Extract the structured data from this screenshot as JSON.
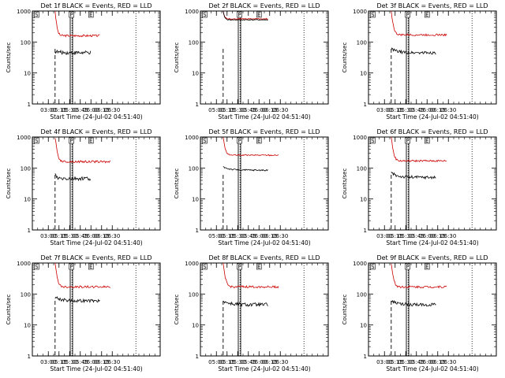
{
  "figure": {
    "xlabel": "Start Time (24-Jul-02 04:51:40)",
    "ylabel": "Counts/sec"
  },
  "colors": {
    "events": "#000000",
    "lld": "#cc0000",
    "axes": "#000000"
  },
  "chart_data": [
    {
      "type": "line",
      "title": "Det 1f BLACK = Events, RED = LLD",
      "ylabel": "Counts/sec",
      "xlabel": "Start Time (24-Jul-02 04:51:40)",
      "yscale": "log",
      "ylim": [
        1,
        1000
      ],
      "xlim": [
        0,
        21600
      ],
      "x_ticks": [
        2700,
        4500,
        6300,
        8100,
        9900,
        11700,
        13500
      ],
      "x_tick_labels": [
        "03:00",
        "05:15",
        "05:30",
        "05:45",
        "06:00",
        "06:15",
        "06:30"
      ],
      "y_ticks": [
        1,
        10,
        100,
        1000
      ],
      "y_tick_labels": [
        "1",
        "10",
        "100",
        "1000"
      ],
      "markers": [
        {
          "label": "S",
          "x": 720
        },
        {
          "label": "P",
          "x": 6600
        },
        {
          "label": "E",
          "x": 9900
        }
      ],
      "series": [
        {
          "name": "Events",
          "color": "#000000",
          "start": 3840,
          "end": 9900,
          "level": 45,
          "peak": 50,
          "noise": 0.12
        },
        {
          "name": "LLD",
          "color": "#cc0000",
          "start": 3840,
          "end": 11400,
          "level": 160,
          "peak": 1000,
          "noise": 0.07
        }
      ]
    },
    {
      "type": "line",
      "title": "Det 2f BLACK = Events, RED = LLD",
      "ylabel": "Counts/sec",
      "xlabel": "Start Time (24-Jul-02 04:51:40)",
      "yscale": "log",
      "ylim": [
        1,
        1000
      ],
      "xlim": [
        0,
        21600
      ],
      "x_ticks": [
        2700,
        4500,
        6300,
        8100,
        9900,
        11700,
        13500
      ],
      "x_tick_labels": [
        "05:00",
        "05:15",
        "05:30",
        "05:45",
        "06:00",
        "06:15",
        "06:30"
      ],
      "y_ticks": [
        1,
        10,
        100,
        1000
      ],
      "y_tick_labels": [
        "1",
        "10",
        "100",
        "1000"
      ],
      "markers": [
        {
          "label": "S",
          "x": 720
        },
        {
          "label": "P",
          "x": 6600
        },
        {
          "label": "E",
          "x": 9900
        }
      ],
      "series": [
        {
          "name": "Events",
          "color": "#000000",
          "start": 3840,
          "end": 11400,
          "level": 520,
          "peak": 1000,
          "noise": 0.03
        },
        {
          "name": "LLD",
          "color": "#cc0000",
          "start": 3840,
          "end": 11400,
          "level": 560,
          "peak": 1000,
          "noise": 0.03
        }
      ]
    },
    {
      "type": "line",
      "title": "Det 3f BLACK = Events, RED = LLD",
      "ylabel": "Counts/sec",
      "xlabel": "Start Time (24-Jul-02 04:51:40)",
      "yscale": "log",
      "ylim": [
        1,
        1000
      ],
      "xlim": [
        0,
        21600
      ],
      "x_ticks": [
        2700,
        4500,
        6300,
        8100,
        9900,
        11700,
        13500
      ],
      "x_tick_labels": [
        "03:00",
        "05:15",
        "05:30",
        "05:45",
        "06:00",
        "06:15",
        "06:30"
      ],
      "y_ticks": [
        1,
        10,
        100,
        1000
      ],
      "y_tick_labels": [
        "1",
        "10",
        "100",
        "1000"
      ],
      "markers": [
        {
          "label": "S",
          "x": 720
        },
        {
          "label": "P",
          "x": 6600
        },
        {
          "label": "E",
          "x": 9900
        }
      ],
      "series": [
        {
          "name": "Events",
          "color": "#000000",
          "start": 3840,
          "end": 11400,
          "level": 45,
          "peak": 60,
          "noise": 0.1
        },
        {
          "name": "LLD",
          "color": "#cc0000",
          "start": 3840,
          "end": 13200,
          "level": 170,
          "peak": 1000,
          "noise": 0.06
        }
      ]
    },
    {
      "type": "line",
      "title": "Det 4f BLACK = Events, RED = LLD",
      "ylabel": "Counts/sec",
      "xlabel": "Start Time (24-Jul-02 04:51:40)",
      "yscale": "log",
      "ylim": [
        1,
        1000
      ],
      "xlim": [
        0,
        21600
      ],
      "x_ticks": [
        2700,
        4500,
        6300,
        8100,
        9900,
        11700,
        13500
      ],
      "x_tick_labels": [
        "03:00",
        "05:15",
        "05:30",
        "05:45",
        "06:00",
        "06:15",
        "06:30"
      ],
      "y_ticks": [
        1,
        10,
        100,
        1000
      ],
      "y_tick_labels": [
        "1",
        "10",
        "100",
        "1000"
      ],
      "markers": [
        {
          "label": "S",
          "x": 720
        },
        {
          "label": "P",
          "x": 6600
        },
        {
          "label": "E",
          "x": 9900
        }
      ],
      "series": [
        {
          "name": "Events",
          "color": "#000000",
          "start": 3840,
          "end": 9900,
          "level": 45,
          "peak": 70,
          "noise": 0.13
        },
        {
          "name": "LLD",
          "color": "#cc0000",
          "start": 3840,
          "end": 13200,
          "level": 160,
          "peak": 1000,
          "noise": 0.07
        }
      ]
    },
    {
      "type": "line",
      "title": "Det 5f BLACK = Events, RED = LLD",
      "ylabel": "Counts/sec",
      "xlabel": "Start Time (24-Jul-02 04:51:40)",
      "yscale": "log",
      "ylim": [
        1,
        1000
      ],
      "xlim": [
        0,
        21600
      ],
      "x_ticks": [
        2700,
        4500,
        6300,
        8100,
        9900,
        11700,
        13500
      ],
      "x_tick_labels": [
        "05:00",
        "05:15",
        "05:30",
        "05:45",
        "06:00",
        "06:15",
        "06:30"
      ],
      "y_ticks": [
        1,
        10,
        100,
        1000
      ],
      "y_tick_labels": [
        "1",
        "10",
        "100",
        "1000"
      ],
      "markers": [
        {
          "label": "S",
          "x": 720
        },
        {
          "label": "P",
          "x": 6600
        },
        {
          "label": "E",
          "x": 9900
        }
      ],
      "series": [
        {
          "name": "Events",
          "color": "#000000",
          "start": 3840,
          "end": 11400,
          "level": 85,
          "peak": 110,
          "noise": 0.05
        },
        {
          "name": "LLD",
          "color": "#cc0000",
          "start": 3840,
          "end": 13200,
          "level": 260,
          "peak": 1000,
          "noise": 0.04
        }
      ]
    },
    {
      "type": "line",
      "title": "Det 6f BLACK = Events, RED = LLD",
      "ylabel": "Counts/sec",
      "xlabel": "Start Time (24-Jul-02 04:51:40)",
      "yscale": "log",
      "ylim": [
        1,
        1000
      ],
      "xlim": [
        0,
        21600
      ],
      "x_ticks": [
        2700,
        4500,
        6300,
        8100,
        9900,
        11700,
        13500
      ],
      "x_tick_labels": [
        "03:00",
        "05:15",
        "05:30",
        "05:45",
        "06:00",
        "06:15",
        "06:30"
      ],
      "y_ticks": [
        1,
        10,
        100,
        1000
      ],
      "y_tick_labels": [
        "1",
        "10",
        "100",
        "1000"
      ],
      "markers": [
        {
          "label": "S",
          "x": 720
        },
        {
          "label": "P",
          "x": 6600
        },
        {
          "label": "E",
          "x": 9900
        }
      ],
      "series": [
        {
          "name": "Events",
          "color": "#000000",
          "start": 3840,
          "end": 11400,
          "level": 50,
          "peak": 70,
          "noise": 0.1
        },
        {
          "name": "LLD",
          "color": "#cc0000",
          "start": 3840,
          "end": 13200,
          "level": 170,
          "peak": 1000,
          "noise": 0.06
        }
      ]
    },
    {
      "type": "line",
      "title": "Det 7f BLACK = Events, RED = LLD",
      "ylabel": "Counts/sec",
      "xlabel": "Start Time (24-Jul-02 04:51:40)",
      "yscale": "log",
      "ylim": [
        1,
        1000
      ],
      "xlim": [
        0,
        21600
      ],
      "x_ticks": [
        2700,
        4500,
        6300,
        8100,
        9900,
        11700,
        13500
      ],
      "x_tick_labels": [
        "03:00",
        "05:15",
        "05:30",
        "05:45",
        "06:00",
        "06:15",
        "06:30"
      ],
      "y_ticks": [
        1,
        10,
        100,
        1000
      ],
      "y_tick_labels": [
        "1",
        "10",
        "100",
        "1000"
      ],
      "markers": [
        {
          "label": "S",
          "x": 720
        },
        {
          "label": "P",
          "x": 6600
        },
        {
          "label": "E",
          "x": 9900
        }
      ],
      "series": [
        {
          "name": "Events",
          "color": "#000000",
          "start": 3840,
          "end": 11400,
          "level": 60,
          "peak": 80,
          "noise": 0.1
        },
        {
          "name": "LLD",
          "color": "#cc0000",
          "start": 3840,
          "end": 13200,
          "level": 170,
          "peak": 1000,
          "noise": 0.07
        }
      ]
    },
    {
      "type": "line",
      "title": "Det 8f BLACK = Events, RED = LLD",
      "ylabel": "Counts/sec",
      "xlabel": "Start Time (24-Jul-02 04:51:40)",
      "yscale": "log",
      "ylim": [
        1,
        1000
      ],
      "xlim": [
        0,
        21600
      ],
      "x_ticks": [
        2700,
        4500,
        6300,
        8100,
        9900,
        11700,
        13500
      ],
      "x_tick_labels": [
        "05:00",
        "05:15",
        "05:30",
        "05:45",
        "06:00",
        "06:15",
        "06:30"
      ],
      "y_ticks": [
        1,
        10,
        100,
        1000
      ],
      "y_tick_labels": [
        "1",
        "10",
        "100",
        "1000"
      ],
      "markers": [
        {
          "label": "S",
          "x": 720
        },
        {
          "label": "P",
          "x": 6600
        },
        {
          "label": "E",
          "x": 9900
        }
      ],
      "series": [
        {
          "name": "Events",
          "color": "#000000",
          "start": 3840,
          "end": 11400,
          "level": 45,
          "peak": 60,
          "noise": 0.12
        },
        {
          "name": "LLD",
          "color": "#cc0000",
          "start": 3840,
          "end": 13200,
          "level": 170,
          "peak": 1000,
          "noise": 0.07
        }
      ]
    },
    {
      "type": "line",
      "title": "Det 9f BLACK = Events, RED = LLD",
      "ylabel": "Counts/sec",
      "xlabel": "Start Time (24-Jul-02 04:51:40)",
      "yscale": "log",
      "ylim": [
        1,
        1000
      ],
      "xlim": [
        0,
        21600
      ],
      "x_ticks": [
        2700,
        4500,
        6300,
        8100,
        9900,
        11700,
        13500
      ],
      "x_tick_labels": [
        "03:00",
        "05:15",
        "05:30",
        "05:45",
        "06:00",
        "06:15",
        "06:30"
      ],
      "y_ticks": [
        1,
        10,
        100,
        1000
      ],
      "y_tick_labels": [
        "1",
        "10",
        "100",
        "1000"
      ],
      "markers": [
        {
          "label": "S",
          "x": 720
        },
        {
          "label": "P",
          "x": 6600
        },
        {
          "label": "E",
          "x": 9900
        }
      ],
      "series": [
        {
          "name": "Events",
          "color": "#000000",
          "start": 3840,
          "end": 11400,
          "level": 45,
          "peak": 60,
          "noise": 0.1
        },
        {
          "name": "LLD",
          "color": "#cc0000",
          "start": 3840,
          "end": 13200,
          "level": 170,
          "peak": 1000,
          "noise": 0.07
        }
      ]
    }
  ]
}
